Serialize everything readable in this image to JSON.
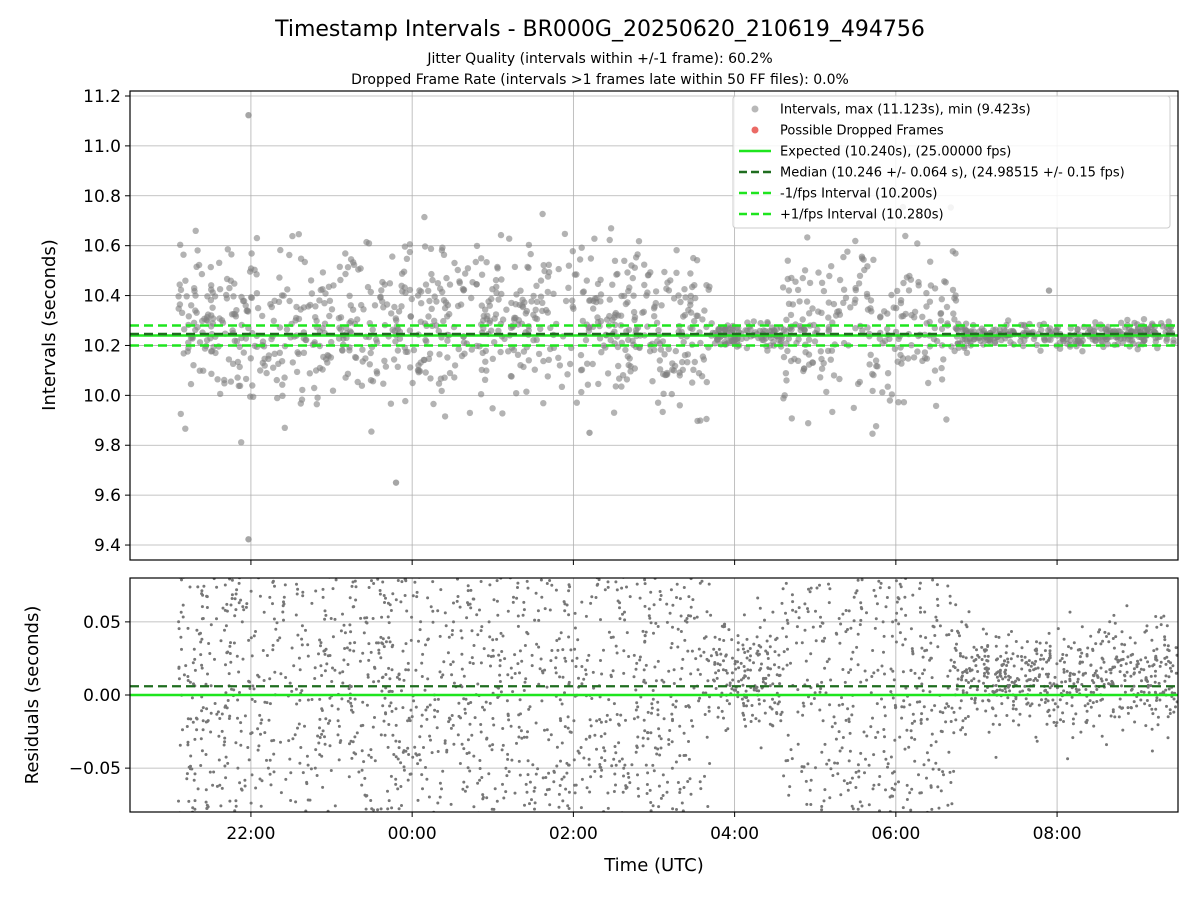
{
  "title": "Timestamp Intervals - BR000G_20250620_210619_494756",
  "subtitle_1": "Jitter Quality (intervals within +/-1 frame): 60.2%",
  "subtitle_2": "Dropped Frame Rate (intervals >1 frames late within 50 FF files): 0.0%",
  "colors": {
    "intervals": "#808080",
    "dropped": "#e8504a",
    "expected": "#1ee51e",
    "median": "#1f6d1f",
    "fps_bounds": "#1ee51e"
  },
  "chart_data": [
    {
      "type": "scatter",
      "ylabel": "Intervals (seconds)",
      "xlabel": "",
      "xlim_hours": [
        20.5,
        33.5
      ],
      "ylim": [
        9.34,
        11.22
      ],
      "grid": true,
      "legend_position": "top-right",
      "y_ticks": [
        9.4,
        9.6,
        9.8,
        10.0,
        10.2,
        10.4,
        10.6,
        10.8,
        11.0,
        11.2
      ],
      "y_tick_labels": [
        "9.4",
        "9.6",
        "9.8",
        "10.0",
        "10.2",
        "10.4",
        "10.6",
        "10.8",
        "11.0",
        "11.2"
      ],
      "legend": [
        {
          "label": "Intervals, max (11.123s), min (9.423s)",
          "kind": "dot",
          "color": "#9a9a9a"
        },
        {
          "label": "Possible Dropped Frames",
          "kind": "dot",
          "color": "#e8504a"
        },
        {
          "label": "Expected (10.240s), (25.00000 fps)",
          "kind": "solid",
          "color": "#1ee51e"
        },
        {
          "label": "Median (10.246 +/- 0.064 s), (24.98515 +/- 0.15 fps)",
          "kind": "dashed",
          "color": "#1f6d1f"
        },
        {
          "label": "-1/fps Interval (10.200s)",
          "kind": "dashed",
          "color": "#1ee51e"
        },
        {
          "label": "+1/fps Interval (10.280s)",
          "kind": "dashed",
          "color": "#1ee51e"
        }
      ],
      "reference_lines": {
        "expected": 10.24,
        "median": 10.246,
        "minus_one_fps": 10.2,
        "plus_one_fps": 10.28
      },
      "series": [
        {
          "name": "Intervals, max (11.123s), min (9.423s)",
          "x_start_hours": 21.1,
          "x_end_hours": 33.5,
          "count": 1500,
          "max": 11.123,
          "min": 9.423,
          "notable_points": [
            {
              "x": 21.97,
              "y": 11.123
            },
            {
              "x": 21.97,
              "y": 9.423
            },
            {
              "x": 23.8,
              "y": 9.65
            },
            {
              "x": 26.2,
              "y": 9.85
            },
            {
              "x": 31.9,
              "y": 10.42
            }
          ],
          "quiet_segments_hours": [
            [
              27.7,
              28.6
            ],
            [
              30.75,
              33.5
            ]
          ],
          "sigma_active": 0.16,
          "sigma_quiet": 0.025
        },
        {
          "name": "Possible Dropped Frames",
          "count": 0
        }
      ]
    },
    {
      "type": "scatter",
      "ylabel": "Residuals (seconds)",
      "xlabel": "Time (UTC)",
      "xlim_hours": [
        20.5,
        33.5
      ],
      "ylim": [
        -0.08,
        0.08
      ],
      "grid": true,
      "y_ticks": [
        -0.05,
        0.0,
        0.05
      ],
      "y_tick_labels": [
        "−0.05",
        "0.00",
        "0.05"
      ],
      "x_ticks_hours": [
        22,
        24,
        26,
        28,
        30,
        32
      ],
      "x_tick_labels": [
        "22:00",
        "00:00",
        "02:00",
        "04:00",
        "06:00",
        "08:00"
      ],
      "reference_lines": {
        "zero": 0.0,
        "median_offset": 0.006
      },
      "series": [
        {
          "name": "Residuals",
          "count": 2600,
          "quiet_segments_hours": [
            [
              27.7,
              28.6
            ],
            [
              30.75,
              33.5
            ]
          ],
          "quiet_center": 0.012
        }
      ]
    }
  ]
}
